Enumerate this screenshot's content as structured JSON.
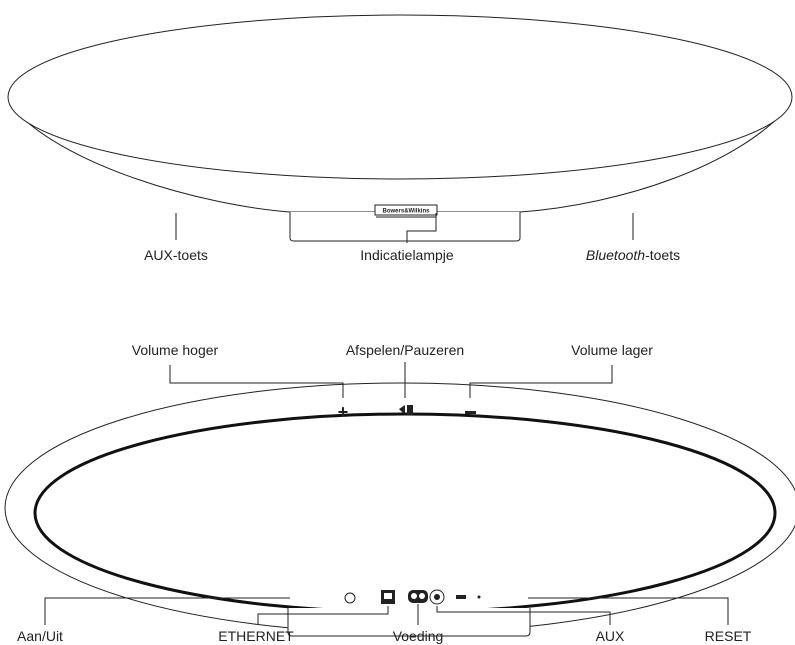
{
  "top_view": {
    "logo": "Bowers&Wilkins",
    "labels": [
      "AUX-toets",
      "Indicatielampje",
      {
        "italic": "Bluetooth",
        "text": "-toets"
      }
    ]
  },
  "bottom_view": {
    "top_labels": [
      "Volume hoger",
      "Afspelen/Pauzeren",
      "Volume lager"
    ],
    "bottom_labels": [
      "Aan/Uit",
      "ETHERNET",
      "Voeding",
      "AUX",
      "RESET"
    ]
  }
}
